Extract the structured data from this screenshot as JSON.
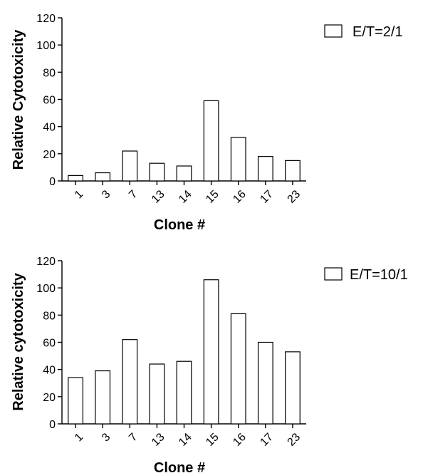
{
  "chart_data": [
    {
      "type": "bar",
      "title": "",
      "xlabel": "Clone #",
      "ylabel": "Relative Cytotoxicity",
      "categories": [
        "1",
        "3",
        "7",
        "13",
        "14",
        "15",
        "16",
        "17",
        "23"
      ],
      "series": [
        {
          "name": "E/T=2/1",
          "values": [
            4,
            6,
            22,
            13,
            11,
            59,
            32,
            18,
            15
          ],
          "color": "#ffffff"
        }
      ],
      "ylim": [
        0,
        120
      ],
      "yticks": [
        "0",
        "20",
        "40",
        "60",
        "80",
        "100",
        "120"
      ],
      "grid": false,
      "legend": "right"
    },
    {
      "type": "bar",
      "title": "",
      "xlabel": "Clone #",
      "ylabel": "Relative cytotoxicity",
      "categories": [
        "1",
        "3",
        "7",
        "13",
        "14",
        "15",
        "16",
        "17",
        "23"
      ],
      "series": [
        {
          "name": "E/T=10/1",
          "values": [
            34,
            39,
            62,
            44,
            46,
            106,
            81,
            60,
            53
          ],
          "color": "#ffffff"
        }
      ],
      "ylim": [
        0,
        120
      ],
      "yticks": [
        "0",
        "20",
        "40",
        "60",
        "80",
        "100",
        "120"
      ],
      "grid": false,
      "legend": "right"
    }
  ]
}
